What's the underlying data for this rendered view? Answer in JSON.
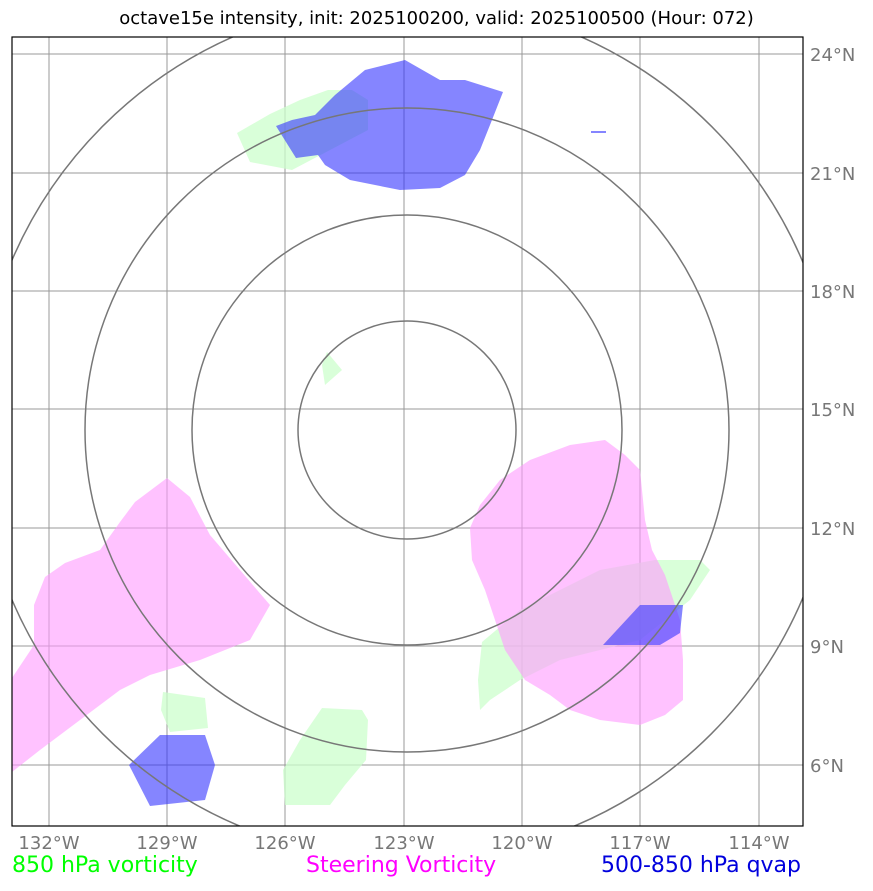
{
  "title": "octave15e intensity, init: 2025100200, valid: 2025100500 (Hour: 072)",
  "latitude_labels": [
    "24°N",
    "21°N",
    "18°N",
    "15°N",
    "12°N",
    "9°N",
    "6°N"
  ],
  "longitude_labels": [
    "132°W",
    "129°W",
    "126°W",
    "123°W",
    "120°W",
    "117°W",
    "114°W"
  ],
  "legend": [
    {
      "label": "850 hPa vorticity",
      "color": "#00ff00"
    },
    {
      "label": "Steering Vorticity",
      "color": "#ff00ff"
    },
    {
      "label": "500-850 hPa qvap",
      "color": "#0000dd"
    }
  ],
  "colors": {
    "vorticity_fill": "#ccffcc",
    "steering_fill": "#ff99ff",
    "qvap_fill": "#3333ff",
    "grid": "#999999",
    "rings": "#777777"
  }
}
